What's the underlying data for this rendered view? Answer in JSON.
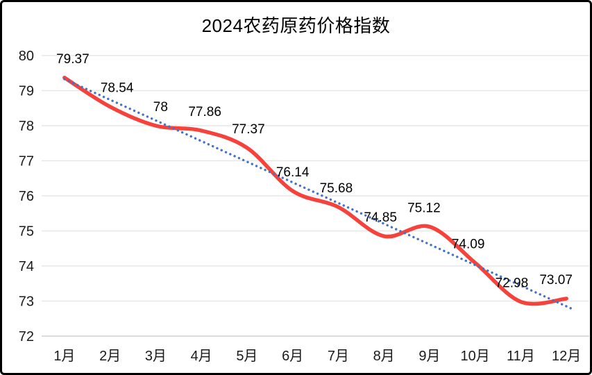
{
  "chart_data": {
    "type": "line",
    "title": "2024农药原药价格指数",
    "categories": [
      "1月",
      "2月",
      "3月",
      "4月",
      "5月",
      "6月",
      "7月",
      "8月",
      "9月",
      "10月",
      "11月",
      "12月"
    ],
    "series": [
      {
        "style": "smooth-line",
        "color": "#f7413b",
        "values": [
          79.37,
          78.54,
          78,
          77.86,
          77.37,
          76.14,
          75.68,
          74.85,
          75.12,
          74.09,
          72.98,
          73.07
        ],
        "data_labels": [
          "79.37",
          "78.54",
          "78",
          "77.86",
          "77.37",
          "76.14",
          "75.68",
          "74.85",
          "75.12",
          "74.09",
          "72.98",
          "73.07"
        ]
      }
    ],
    "trendline": {
      "type": "linear",
      "style": "dotted",
      "color": "#4472c4"
    },
    "xlabel": "",
    "ylabel": "",
    "ylim": [
      72,
      80
    ],
    "y_ticks": [
      "80",
      "79",
      "78",
      "77",
      "76",
      "75",
      "74",
      "73",
      "72"
    ],
    "grid": "horizontal",
    "gridline_color": "#e7e7e7",
    "axisline_color": "#d0d0d0",
    "legend": "none",
    "background": "#ffffff",
    "label_color": "#000000"
  }
}
